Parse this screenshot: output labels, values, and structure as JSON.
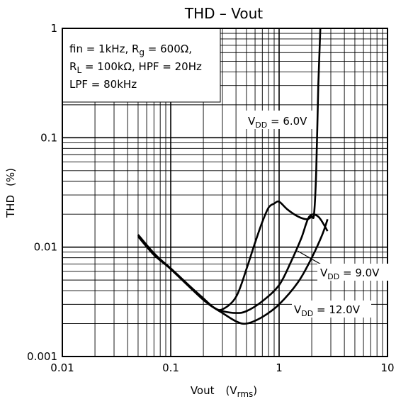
{
  "chart_data": {
    "type": "line",
    "title": "THD  –  Vout",
    "xlabel": "Vout",
    "xlabel_unit_main": "V",
    "xlabel_unit_sub": "rms",
    "ylabel": "THD",
    "ylabel_unit": "(%)",
    "x_scale": "log",
    "y_scale": "log",
    "xlim": [
      0.01,
      10
    ],
    "ylim": [
      0.001,
      1
    ],
    "grid": true,
    "x_ticks": [
      {
        "value": 0.01,
        "label": "0.01"
      },
      {
        "value": 0.1,
        "label": "0.1"
      },
      {
        "value": 1,
        "label": "1"
      },
      {
        "value": 10,
        "label": "10"
      }
    ],
    "y_ticks": [
      {
        "value": 0.001,
        "label": "0.001"
      },
      {
        "value": 0.01,
        "label": "0.01"
      },
      {
        "value": 0.1,
        "label": "0.1"
      },
      {
        "value": 1,
        "label": "1"
      }
    ],
    "conditions": {
      "line1": "fin = 1kHz, R",
      "line1_sub": "g",
      "line1_tail": " = 600Ω,",
      "line2": "R",
      "line2_sub": "L",
      "line2_tail": " = 100kΩ,  HPF = 20Hz",
      "line3": "LPF = 80kHz"
    },
    "series": [
      {
        "label_main": "V",
        "label_sub": "DD",
        "label_tail": " = 6.0V",
        "x": [
          0.05,
          0.07,
          0.1,
          0.15,
          0.2,
          0.25,
          0.3,
          0.4,
          0.5,
          0.6,
          0.7,
          0.8,
          0.9,
          1.0,
          1.2,
          1.5,
          1.8,
          2.0,
          2.1,
          2.2,
          2.3,
          2.4
        ],
        "y": [
          0.0125,
          0.0085,
          0.0063,
          0.0043,
          0.0033,
          0.0028,
          0.0027,
          0.0035,
          0.0063,
          0.011,
          0.017,
          0.023,
          0.025,
          0.026,
          0.022,
          0.019,
          0.018,
          0.019,
          0.02,
          0.05,
          0.3,
          1.0
        ]
      },
      {
        "label_main": "V",
        "label_sub": "DD",
        "label_tail": " = 9.0V",
        "x": [
          0.05,
          0.07,
          0.1,
          0.15,
          0.2,
          0.25,
          0.3,
          0.4,
          0.5,
          0.7,
          1.0,
          1.3,
          1.6,
          1.9,
          2.3,
          2.8
        ],
        "y": [
          0.0128,
          0.0087,
          0.0064,
          0.0044,
          0.0034,
          0.0028,
          0.0026,
          0.0025,
          0.0026,
          0.0032,
          0.0045,
          0.0075,
          0.012,
          0.019,
          0.019,
          0.014
        ]
      },
      {
        "label_main": "V",
        "label_sub": "DD",
        "label_tail": " = 12.0V",
        "x": [
          0.05,
          0.07,
          0.1,
          0.15,
          0.2,
          0.25,
          0.3,
          0.4,
          0.5,
          0.7,
          1.0,
          1.5,
          2.0,
          2.5,
          2.8
        ],
        "y": [
          0.013,
          0.0088,
          0.0063,
          0.0043,
          0.0033,
          0.0028,
          0.0025,
          0.0021,
          0.002,
          0.0023,
          0.003,
          0.0048,
          0.008,
          0.013,
          0.018
        ]
      }
    ]
  }
}
